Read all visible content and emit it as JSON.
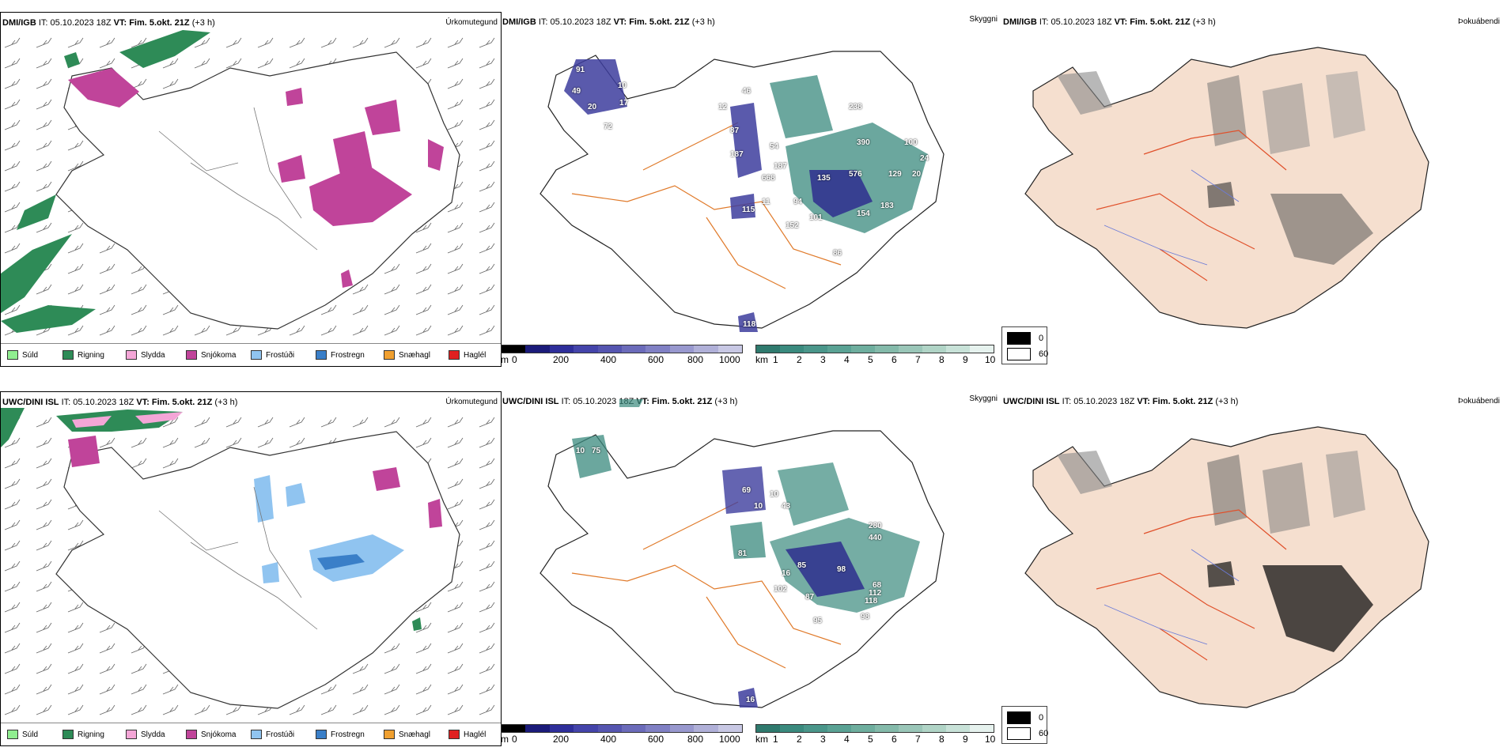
{
  "rows": [
    {
      "precip": {
        "model": "DMI/IGB",
        "it": "IT: 05.10.2023 18Z",
        "vt_label": "VT:",
        "vt": "Fim. 5.okt. 21Z",
        "offset": "(+3 h)",
        "type_label": "Úrkomutegund"
      },
      "vis": {
        "model": "DMI/IGB",
        "it": "IT: 05.10.2023 18Z",
        "vt_label": "VT:",
        "vt": "Fim. 5.okt. 21Z",
        "offset": "(+3 h)",
        "type_label": "Skyggni"
      },
      "fog": {
        "model": "DMI/IGB",
        "it": "IT: 05.10.2023 18Z",
        "vt_label": "VT:",
        "vt": "Fim. 5.okt. 21Z",
        "offset": "(+3 h)",
        "type_label": "Þokuábendi"
      }
    },
    {
      "precip": {
        "model": "UWC/DINI ISL",
        "it": "IT: 05.10.2023 18Z",
        "vt_label": "VT:",
        "vt": "Fim. 5.okt. 21Z",
        "offset": "(+3 h)",
        "type_label": "Úrkomutegund"
      },
      "vis": {
        "model": "UWC/DINI ISL",
        "it": "IT: 05.10.2023 18Z",
        "vt_label": "VT:",
        "vt": "Fim. 5.okt. 21Z",
        "offset": "(+3 h)",
        "type_label": "Skyggni"
      },
      "fog": {
        "model": "UWC/DINI ISL",
        "it": "IT: 05.10.2023 18Z",
        "vt_label": "VT:",
        "vt": "Fim. 5.okt. 21Z",
        "offset": "(+3 h)",
        "type_label": "Þokuábendi"
      }
    }
  ],
  "precip_legend": [
    {
      "label": "Súld",
      "color": "#90ee90"
    },
    {
      "label": "Rigning",
      "color": "#2e8b57"
    },
    {
      "label": "Slydda",
      "color": "#f4a6d7"
    },
    {
      "label": "Snjókoma",
      "color": "#c0449a"
    },
    {
      "label": "Frostúði",
      "color": "#90c4f0"
    },
    {
      "label": "Frostregn",
      "color": "#3a7fc8"
    },
    {
      "label": "Snæhagl",
      "color": "#f0a030"
    },
    {
      "label": "Haglél",
      "color": "#e02020"
    }
  ],
  "vis_scale_m": {
    "unit": "m",
    "ticks": [
      "0",
      "200",
      "400",
      "600",
      "800",
      "1000"
    ]
  },
  "vis_scale_km": {
    "unit": "km",
    "ticks": [
      "1",
      "2",
      "3",
      "4",
      "5",
      "6",
      "7",
      "8",
      "9",
      "10"
    ]
  },
  "fog_legend": [
    {
      "label": "0",
      "color": "#000000"
    },
    {
      "label": "60",
      "color": "#ffffff"
    }
  ],
  "vis_labels_row1": [
    "91",
    "49",
    "20",
    "72",
    "10",
    "17",
    "12",
    "87",
    "187",
    "46",
    "54",
    "187",
    "668",
    "115",
    "11",
    "94",
    "101",
    "152",
    "135",
    "576",
    "238",
    "390",
    "129",
    "183",
    "154",
    "20",
    "24",
    "100",
    "86",
    "118"
  ],
  "vis_labels_row2": [
    "10",
    "75",
    "69",
    "10",
    "10",
    "43",
    "81",
    "102",
    "87",
    "85",
    "98",
    "16",
    "112",
    "280",
    "440",
    "68",
    "118",
    "98",
    "95",
    "16"
  ]
}
